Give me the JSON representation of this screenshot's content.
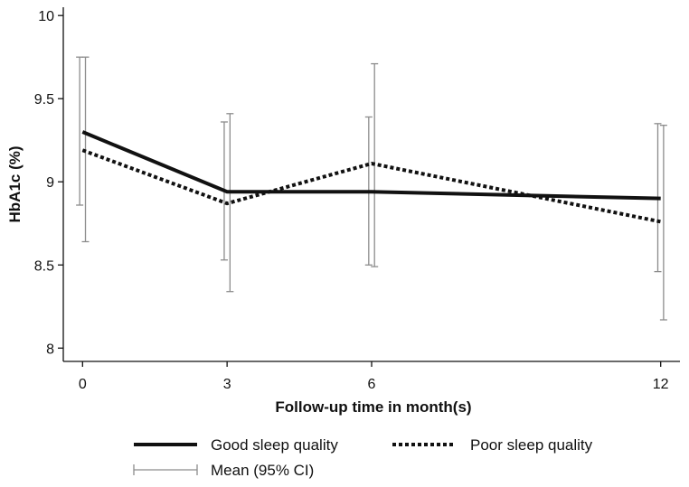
{
  "chart_data": {
    "type": "line",
    "title": "",
    "xlabel": "Follow-up time in month(s)",
    "ylabel": "HbA1c (%)",
    "x": [
      0,
      3,
      6,
      12
    ],
    "xlim": [
      -0.4,
      12.4
    ],
    "ylim": [
      7.92,
      10.05
    ],
    "xticks": [
      0,
      3,
      6,
      12
    ],
    "xtick_labels": [
      "0",
      "3",
      "6",
      "12"
    ],
    "yticks": [
      8,
      8.5,
      9,
      9.5,
      10
    ],
    "ytick_labels": [
      "8",
      "8.5",
      "9",
      "9.5",
      "10"
    ],
    "grid": false,
    "series": [
      {
        "name": "Good sleep quality",
        "style": "solid",
        "color": "#111111",
        "values": [
          9.3,
          8.94,
          8.94,
          8.9
        ],
        "ci_lower": [
          8.86,
          8.53,
          8.5,
          8.46
        ],
        "ci_upper": [
          9.75,
          9.36,
          9.39,
          9.35
        ],
        "ci_offset": -0.06
      },
      {
        "name": "Poor sleep quality",
        "style": "dotted",
        "color": "#111111",
        "values": [
          9.19,
          8.87,
          9.11,
          8.76
        ],
        "ci_lower": [
          8.64,
          8.34,
          8.49,
          8.17
        ],
        "ci_upper": [
          9.75,
          9.41,
          9.71,
          9.34
        ],
        "ci_offset": 0.06
      }
    ],
    "ci_color": "#8c8c8c",
    "legend": {
      "placement": "bottom",
      "good_label": "Good sleep quality",
      "poor_label": "Poor sleep quality",
      "ci_label": "Mean (95% CI)"
    }
  }
}
